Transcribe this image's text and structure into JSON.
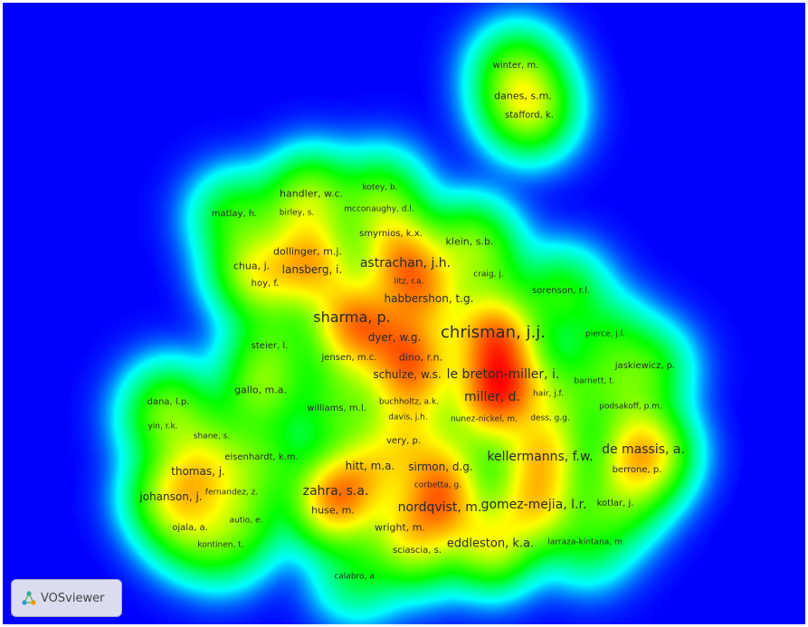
{
  "app": {
    "name": "VOSviewer",
    "view": "density"
  },
  "colors": {
    "background": "#0000ff",
    "low": "#00ffff",
    "mid": "#00ff00",
    "high": "#ffff00",
    "peak": "#ff0000"
  },
  "nodes": [
    {
      "label": "winter, m.",
      "weight": 3
    },
    {
      "label": "danes, s.m.",
      "weight": 4
    },
    {
      "label": "stafford, k.",
      "weight": 3
    },
    {
      "label": "handler, w.c.",
      "weight": 4
    },
    {
      "label": "kotey, b.",
      "weight": 2
    },
    {
      "label": "matlay, h.",
      "weight": 3
    },
    {
      "label": "birley, s.",
      "weight": 2
    },
    {
      "label": "mcconaughy, d.l.",
      "weight": 2
    },
    {
      "label": "smyrnios, k.x.",
      "weight": 3
    },
    {
      "label": "klein, s.b.",
      "weight": 4
    },
    {
      "label": "dollinger, m.j.",
      "weight": 4
    },
    {
      "label": "astrachan, j.h.",
      "weight": 7
    },
    {
      "label": "chua, j.",
      "weight": 4
    },
    {
      "label": "lansberg, i.",
      "weight": 5
    },
    {
      "label": "craig, j.",
      "weight": 2
    },
    {
      "label": "hoy, f.",
      "weight": 3
    },
    {
      "label": "litz, r.a.",
      "weight": 2
    },
    {
      "label": "sorenson, r.l.",
      "weight": 3
    },
    {
      "label": "habbershon, t.g.",
      "weight": 5
    },
    {
      "label": "sharma, p.",
      "weight": 9
    },
    {
      "label": "chrisman, j.j.",
      "weight": 10
    },
    {
      "label": "dyer, w.g.",
      "weight": 5
    },
    {
      "label": "pierce, j.l.",
      "weight": 2
    },
    {
      "label": "steier, l.",
      "weight": 3
    },
    {
      "label": "jensen, m.c.",
      "weight": 3
    },
    {
      "label": "dino, r.n.",
      "weight": 4
    },
    {
      "label": "jaskiewicz, p.",
      "weight": 3
    },
    {
      "label": "schulze, w.s.",
      "weight": 5
    },
    {
      "label": "le breton-miller, i.",
      "weight": 7
    },
    {
      "label": "barnett, t.",
      "weight": 2
    },
    {
      "label": "gallo, m.a.",
      "weight": 4
    },
    {
      "label": "miller, d.",
      "weight": 7
    },
    {
      "label": "dana, l.p.",
      "weight": 3
    },
    {
      "label": "buchholtz, a.k.",
      "weight": 2
    },
    {
      "label": "hair, j.f.",
      "weight": 2
    },
    {
      "label": "williams, m.l.",
      "weight": 3
    },
    {
      "label": "davis, j.h.",
      "weight": 2
    },
    {
      "label": "podsakoff, p.m.",
      "weight": 2
    },
    {
      "label": "nunez-nickel, m.",
      "weight": 2
    },
    {
      "label": "dess, g.g.",
      "weight": 2
    },
    {
      "label": "yin, r.k.",
      "weight": 2
    },
    {
      "label": "shane, s.",
      "weight": 2
    },
    {
      "label": "very, p.",
      "weight": 3
    },
    {
      "label": "de massis, a.",
      "weight": 7
    },
    {
      "label": "eisenhardt, k.m.",
      "weight": 3
    },
    {
      "label": "kellermanns, f.w.",
      "weight": 7
    },
    {
      "label": "hitt, m.a.",
      "weight": 5
    },
    {
      "label": "sirmon, d.g.",
      "weight": 5
    },
    {
      "label": "thomas, j.",
      "weight": 5
    },
    {
      "label": "berrone, p.",
      "weight": 3
    },
    {
      "label": "corbetta, g.",
      "weight": 2
    },
    {
      "label": "zahra, s.a.",
      "weight": 7
    },
    {
      "label": "fernandez, z.",
      "weight": 2
    },
    {
      "label": "johanson, j.",
      "weight": 5
    },
    {
      "label": "nordqvist, m.",
      "weight": 7
    },
    {
      "label": "gomez-mejia, l.r.",
      "weight": 7
    },
    {
      "label": "kotlar, j.",
      "weight": 3
    },
    {
      "label": "huse, m.",
      "weight": 4
    },
    {
      "label": "autio, e.",
      "weight": 2
    },
    {
      "label": "wright, m.",
      "weight": 4
    },
    {
      "label": "ojala, a.",
      "weight": 3
    },
    {
      "label": "eddleston, k.a.",
      "weight": 6
    },
    {
      "label": "larraza-kintana, m.",
      "weight": 2
    },
    {
      "label": "kontinen, t.",
      "weight": 2
    },
    {
      "label": "sciascia, s.",
      "weight": 3
    },
    {
      "label": "calabro, a.",
      "weight": 2
    }
  ]
}
